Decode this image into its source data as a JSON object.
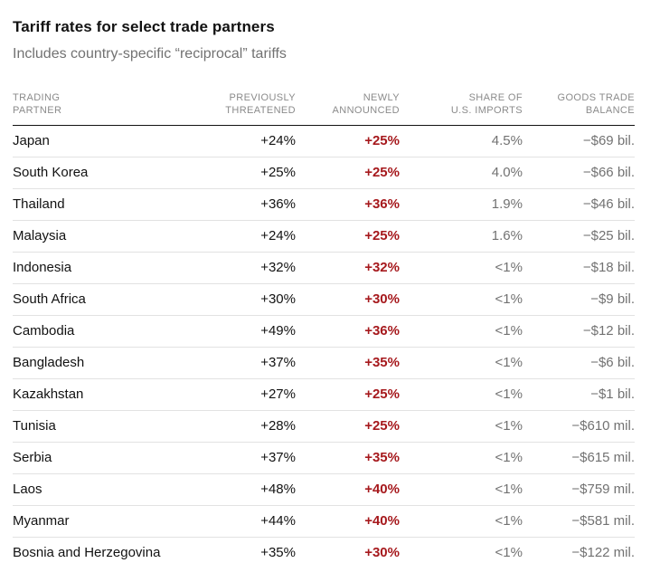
{
  "chart_data": {
    "type": "table",
    "title": "Tariff rates for select trade partners",
    "subtitle": "Includes country-specific “reciprocal” tariffs",
    "columns": [
      {
        "id": "partner",
        "line1": "TRADING",
        "line2": "PARTNER"
      },
      {
        "id": "previously_threatened",
        "line1": "PREVIOUSLY",
        "line2": "THREATENED"
      },
      {
        "id": "newly_announced",
        "line1": "NEWLY",
        "line2": "ANNOUNCED"
      },
      {
        "id": "share_of_us_imports",
        "line1": "SHARE OF",
        "line2": "U.S. IMPORTS"
      },
      {
        "id": "goods_trade_balance",
        "line1": "GOODS TRADE",
        "line2": "BALANCE"
      }
    ],
    "rows": [
      {
        "partner": "Japan",
        "previously_threatened": "+24%",
        "newly_announced": "+25%",
        "share_of_us_imports": "4.5%",
        "goods_trade_balance": "−$69 bil."
      },
      {
        "partner": "South Korea",
        "previously_threatened": "+25%",
        "newly_announced": "+25%",
        "share_of_us_imports": "4.0%",
        "goods_trade_balance": "−$66 bil."
      },
      {
        "partner": "Thailand",
        "previously_threatened": "+36%",
        "newly_announced": "+36%",
        "share_of_us_imports": "1.9%",
        "goods_trade_balance": "−$46 bil."
      },
      {
        "partner": "Malaysia",
        "previously_threatened": "+24%",
        "newly_announced": "+25%",
        "share_of_us_imports": "1.6%",
        "goods_trade_balance": "−$25 bil."
      },
      {
        "partner": "Indonesia",
        "previously_threatened": "+32%",
        "newly_announced": "+32%",
        "share_of_us_imports": "<1%",
        "goods_trade_balance": "−$18 bil."
      },
      {
        "partner": "South Africa",
        "previously_threatened": "+30%",
        "newly_announced": "+30%",
        "share_of_us_imports": "<1%",
        "goods_trade_balance": "−$9 bil."
      },
      {
        "partner": "Cambodia",
        "previously_threatened": "+49%",
        "newly_announced": "+36%",
        "share_of_us_imports": "<1%",
        "goods_trade_balance": "−$12 bil."
      },
      {
        "partner": "Bangladesh",
        "previously_threatened": "+37%",
        "newly_announced": "+35%",
        "share_of_us_imports": "<1%",
        "goods_trade_balance": "−$6 bil."
      },
      {
        "partner": "Kazakhstan",
        "previously_threatened": "+27%",
        "newly_announced": "+25%",
        "share_of_us_imports": "<1%",
        "goods_trade_balance": "−$1 bil."
      },
      {
        "partner": "Tunisia",
        "previously_threatened": "+28%",
        "newly_announced": "+25%",
        "share_of_us_imports": "<1%",
        "goods_trade_balance": "−$610 mil."
      },
      {
        "partner": "Serbia",
        "previously_threatened": "+37%",
        "newly_announced": "+35%",
        "share_of_us_imports": "<1%",
        "goods_trade_balance": "−$615 mil."
      },
      {
        "partner": "Laos",
        "previously_threatened": "+48%",
        "newly_announced": "+40%",
        "share_of_us_imports": "<1%",
        "goods_trade_balance": "−$759 mil."
      },
      {
        "partner": "Myanmar",
        "previously_threatened": "+44%",
        "newly_announced": "+40%",
        "share_of_us_imports": "<1%",
        "goods_trade_balance": "−$581 mil."
      },
      {
        "partner": "Bosnia and Herzegovina",
        "previously_threatened": "+35%",
        "newly_announced": "+30%",
        "share_of_us_imports": "<1%",
        "goods_trade_balance": "−$122 mil."
      }
    ]
  },
  "colors": {
    "title_text": "#121212",
    "subtitle_text": "#727272",
    "header_text": "#8b8b8b",
    "primary_text": "#121212",
    "accent_red": "#a6191d",
    "secondary_text": "#727272",
    "row_divider": "#e2e2e2",
    "header_rule": "#121212"
  }
}
